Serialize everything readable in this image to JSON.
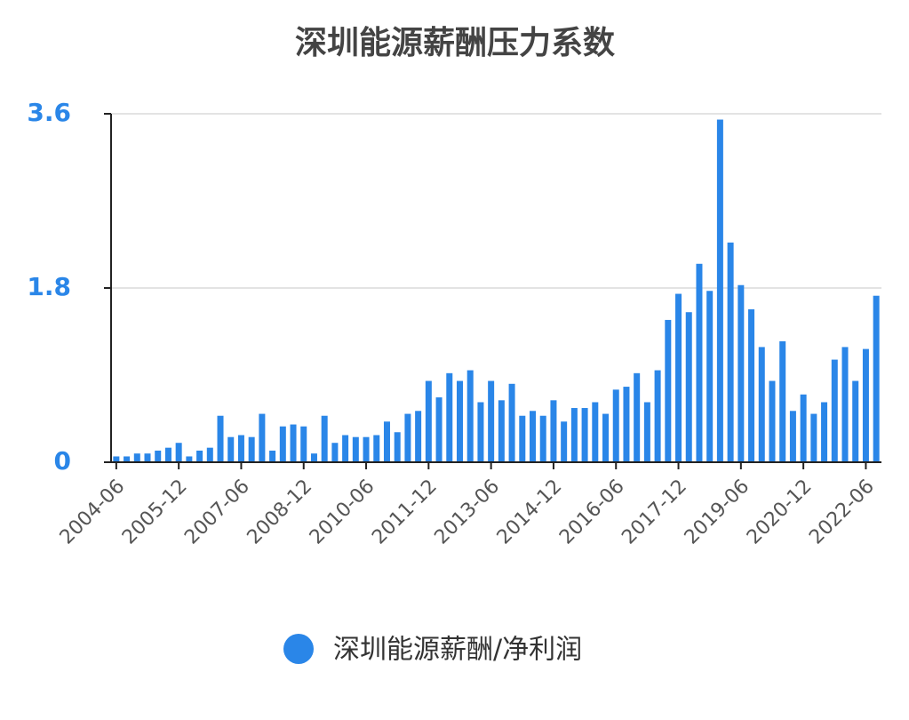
{
  "chart_data": {
    "type": "bar",
    "title": "深圳能源薪酬压力系数",
    "categories": [
      "2004-06",
      null,
      null,
      null,
      null,
      null,
      "2005-12",
      null,
      null,
      null,
      null,
      null,
      "2007-06",
      null,
      null,
      null,
      null,
      null,
      "2008-12",
      null,
      null,
      null,
      null,
      null,
      "2010-06",
      null,
      null,
      null,
      null,
      null,
      "2011-12",
      null,
      null,
      null,
      null,
      null,
      "2013-06",
      null,
      null,
      null,
      null,
      null,
      "2014-12",
      null,
      null,
      null,
      null,
      null,
      "2016-06",
      null,
      null,
      null,
      null,
      null,
      "2017-12",
      null,
      null,
      null,
      null,
      null,
      "2019-06",
      null,
      null,
      null,
      null,
      null,
      "2020-12",
      null,
      null,
      null,
      null,
      null,
      "2022-06",
      null
    ],
    "series": [
      {
        "name": "深圳能源薪酬/净利润",
        "color": "#2a86e8",
        "values": [
          0.06,
          0.06,
          0.09,
          0.09,
          0.12,
          0.15,
          0.2,
          0.06,
          0.12,
          0.15,
          0.48,
          0.26,
          0.28,
          0.26,
          0.5,
          0.12,
          0.37,
          0.39,
          0.37,
          0.09,
          0.48,
          0.2,
          0.28,
          0.26,
          0.26,
          0.28,
          0.42,
          0.31,
          0.5,
          0.53,
          0.84,
          0.67,
          0.92,
          0.84,
          0.95,
          0.62,
          0.84,
          0.64,
          0.81,
          0.48,
          0.53,
          0.48,
          0.64,
          0.42,
          0.56,
          0.56,
          0.62,
          0.5,
          0.75,
          0.78,
          0.92,
          0.62,
          0.95,
          1.47,
          1.74,
          1.55,
          2.05,
          1.77,
          3.54,
          2.27,
          1.83,
          1.58,
          1.19,
          0.84,
          1.25,
          0.53,
          0.7,
          0.5,
          0.62,
          1.06,
          1.19,
          0.84,
          1.17,
          1.72
        ]
      }
    ],
    "ylim": [
      0,
      3.6
    ],
    "yticks": [
      0,
      1.8,
      3.6
    ],
    "grid": true
  }
}
